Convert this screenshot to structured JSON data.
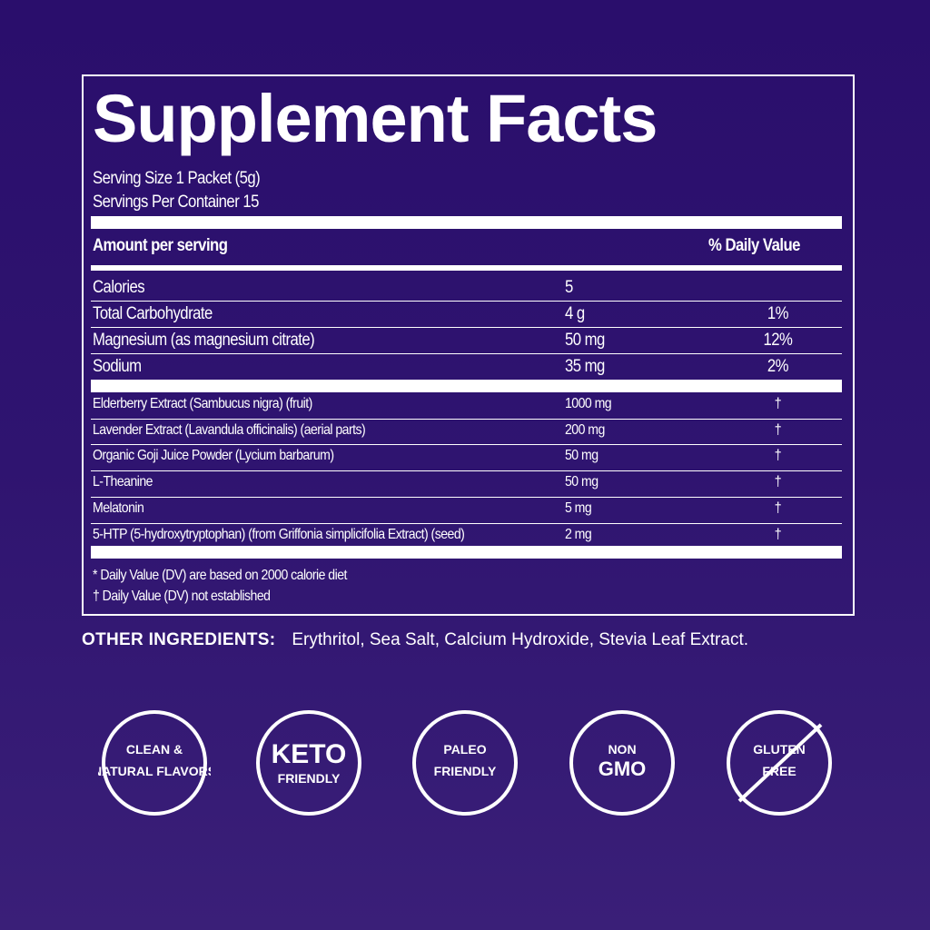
{
  "title": "Supplement Facts",
  "serving_size": "Serving Size 1 Packet (5g)",
  "servings_per_container": "Servings Per Container 15",
  "header": {
    "amount": "Amount per serving",
    "dv": "% Daily Value"
  },
  "nutrients": [
    {
      "name": "Calories",
      "amount": "5",
      "dv": ""
    },
    {
      "name": "Total Carbohydrate",
      "amount": "4 g",
      "dv": "1%"
    },
    {
      "name": "Magnesium (as magnesium citrate)",
      "amount": "50 mg",
      "dv": "12%"
    },
    {
      "name": "Sodium",
      "amount": "35 mg",
      "dv": "2%"
    }
  ],
  "ingredients": [
    {
      "name": "Elderberry Extract (Sambucus nigra) (fruit)",
      "amount": "1000 mg",
      "dv": "†"
    },
    {
      "name": "Lavender Extract (Lavandula officinalis) (aerial parts)",
      "amount": "200 mg",
      "dv": "†"
    },
    {
      "name": "Organic Goji Juice Powder (Lycium barbarum)",
      "amount": "50 mg",
      "dv": "†"
    },
    {
      "name": "L-Theanine",
      "amount": "50 mg",
      "dv": "†"
    },
    {
      "name": "Melatonin",
      "amount": "5 mg",
      "dv": "†"
    },
    {
      "name": "5-HTP (5-hydroxytryptophan) (from Griffonia simplicifolia Extract) (seed)",
      "amount": "2 mg",
      "dv": "†"
    }
  ],
  "footnotes": [
    "* Daily Value (DV) are based on 2000 calorie diet",
    "† Daily Value (DV) not established"
  ],
  "other_ingredients": {
    "label": "OTHER INGREDIENTS:",
    "value": "Erythritol, Sea Salt, Calcium Hydroxide, Stevia Leaf Extract."
  },
  "badges": [
    {
      "icon": "leaf-drop-icon",
      "text": "CLEAN & NATURAL FLAVORS"
    },
    {
      "icon": "keto-icon",
      "text": "KETO FRIENDLY"
    },
    {
      "icon": "paleo-icon",
      "text": "PALEO FRIENDLY"
    },
    {
      "icon": "non-gmo-icon",
      "text": "NON GMO"
    },
    {
      "icon": "gluten-free-icon",
      "text": "GLUTEN FREE"
    }
  ],
  "colors": {
    "background": "#2c1070",
    "text": "#ffffff"
  }
}
